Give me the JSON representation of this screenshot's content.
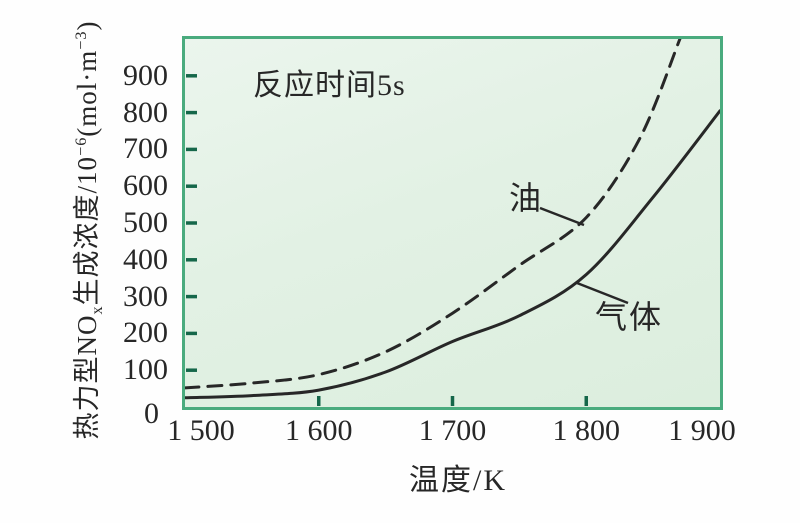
{
  "figure": {
    "annotation": "反应时间5s",
    "x_axis": {
      "title": "温度/K",
      "tick_labels": [
        "1 500",
        "1 600",
        "1 700",
        "1 800",
        "1 900"
      ]
    },
    "y_axis": {
      "tick_labels": [
        "0",
        "100",
        "200",
        "300",
        "400",
        "500",
        "600",
        "700",
        "800",
        "900"
      ],
      "title_parts": {
        "base1": "热力型NO",
        "sub1": "x",
        "base2": "生成浓度/10",
        "sup1": "−6",
        "base3": "(mol·m",
        "sup2": "−3",
        "base4": ")"
      }
    },
    "curve_labels": {
      "oil": "油",
      "gas": "气体"
    }
  },
  "chart_data": {
    "type": "line",
    "title": "",
    "annotation": "反应时间5s",
    "xlabel": "温度/K",
    "ylabel": "热力型NOx生成浓度/10−6(mol·m−3)",
    "xlim": [
      1500,
      1900
    ],
    "ylim": [
      0,
      1000
    ],
    "x_ticks": [
      1500,
      1600,
      1700,
      1800,
      1900
    ],
    "y_ticks": [
      0,
      100,
      200,
      300,
      400,
      500,
      600,
      700,
      800,
      900
    ],
    "grid": false,
    "legend": "inline-callout-labels",
    "series": [
      {
        "name": "油",
        "style": "dashed",
        "points": [
          [
            1500,
            52
          ],
          [
            1550,
            65
          ],
          [
            1600,
            88
          ],
          [
            1650,
            150
          ],
          [
            1700,
            255
          ],
          [
            1750,
            385
          ],
          [
            1800,
            515
          ],
          [
            1840,
            730
          ],
          [
            1870,
            1000
          ]
        ]
      },
      {
        "name": "气体",
        "style": "solid",
        "points": [
          [
            1500,
            25
          ],
          [
            1550,
            31
          ],
          [
            1600,
            46
          ],
          [
            1650,
            95
          ],
          [
            1700,
            178
          ],
          [
            1750,
            248
          ],
          [
            1800,
            360
          ],
          [
            1850,
            570
          ],
          [
            1900,
            805
          ]
        ]
      }
    ],
    "colors": {
      "plot_bg": "#e3f1e5",
      "frame": "#4aab7e",
      "tick": "#15674a",
      "curve": "#272727",
      "text": "#272727"
    }
  }
}
